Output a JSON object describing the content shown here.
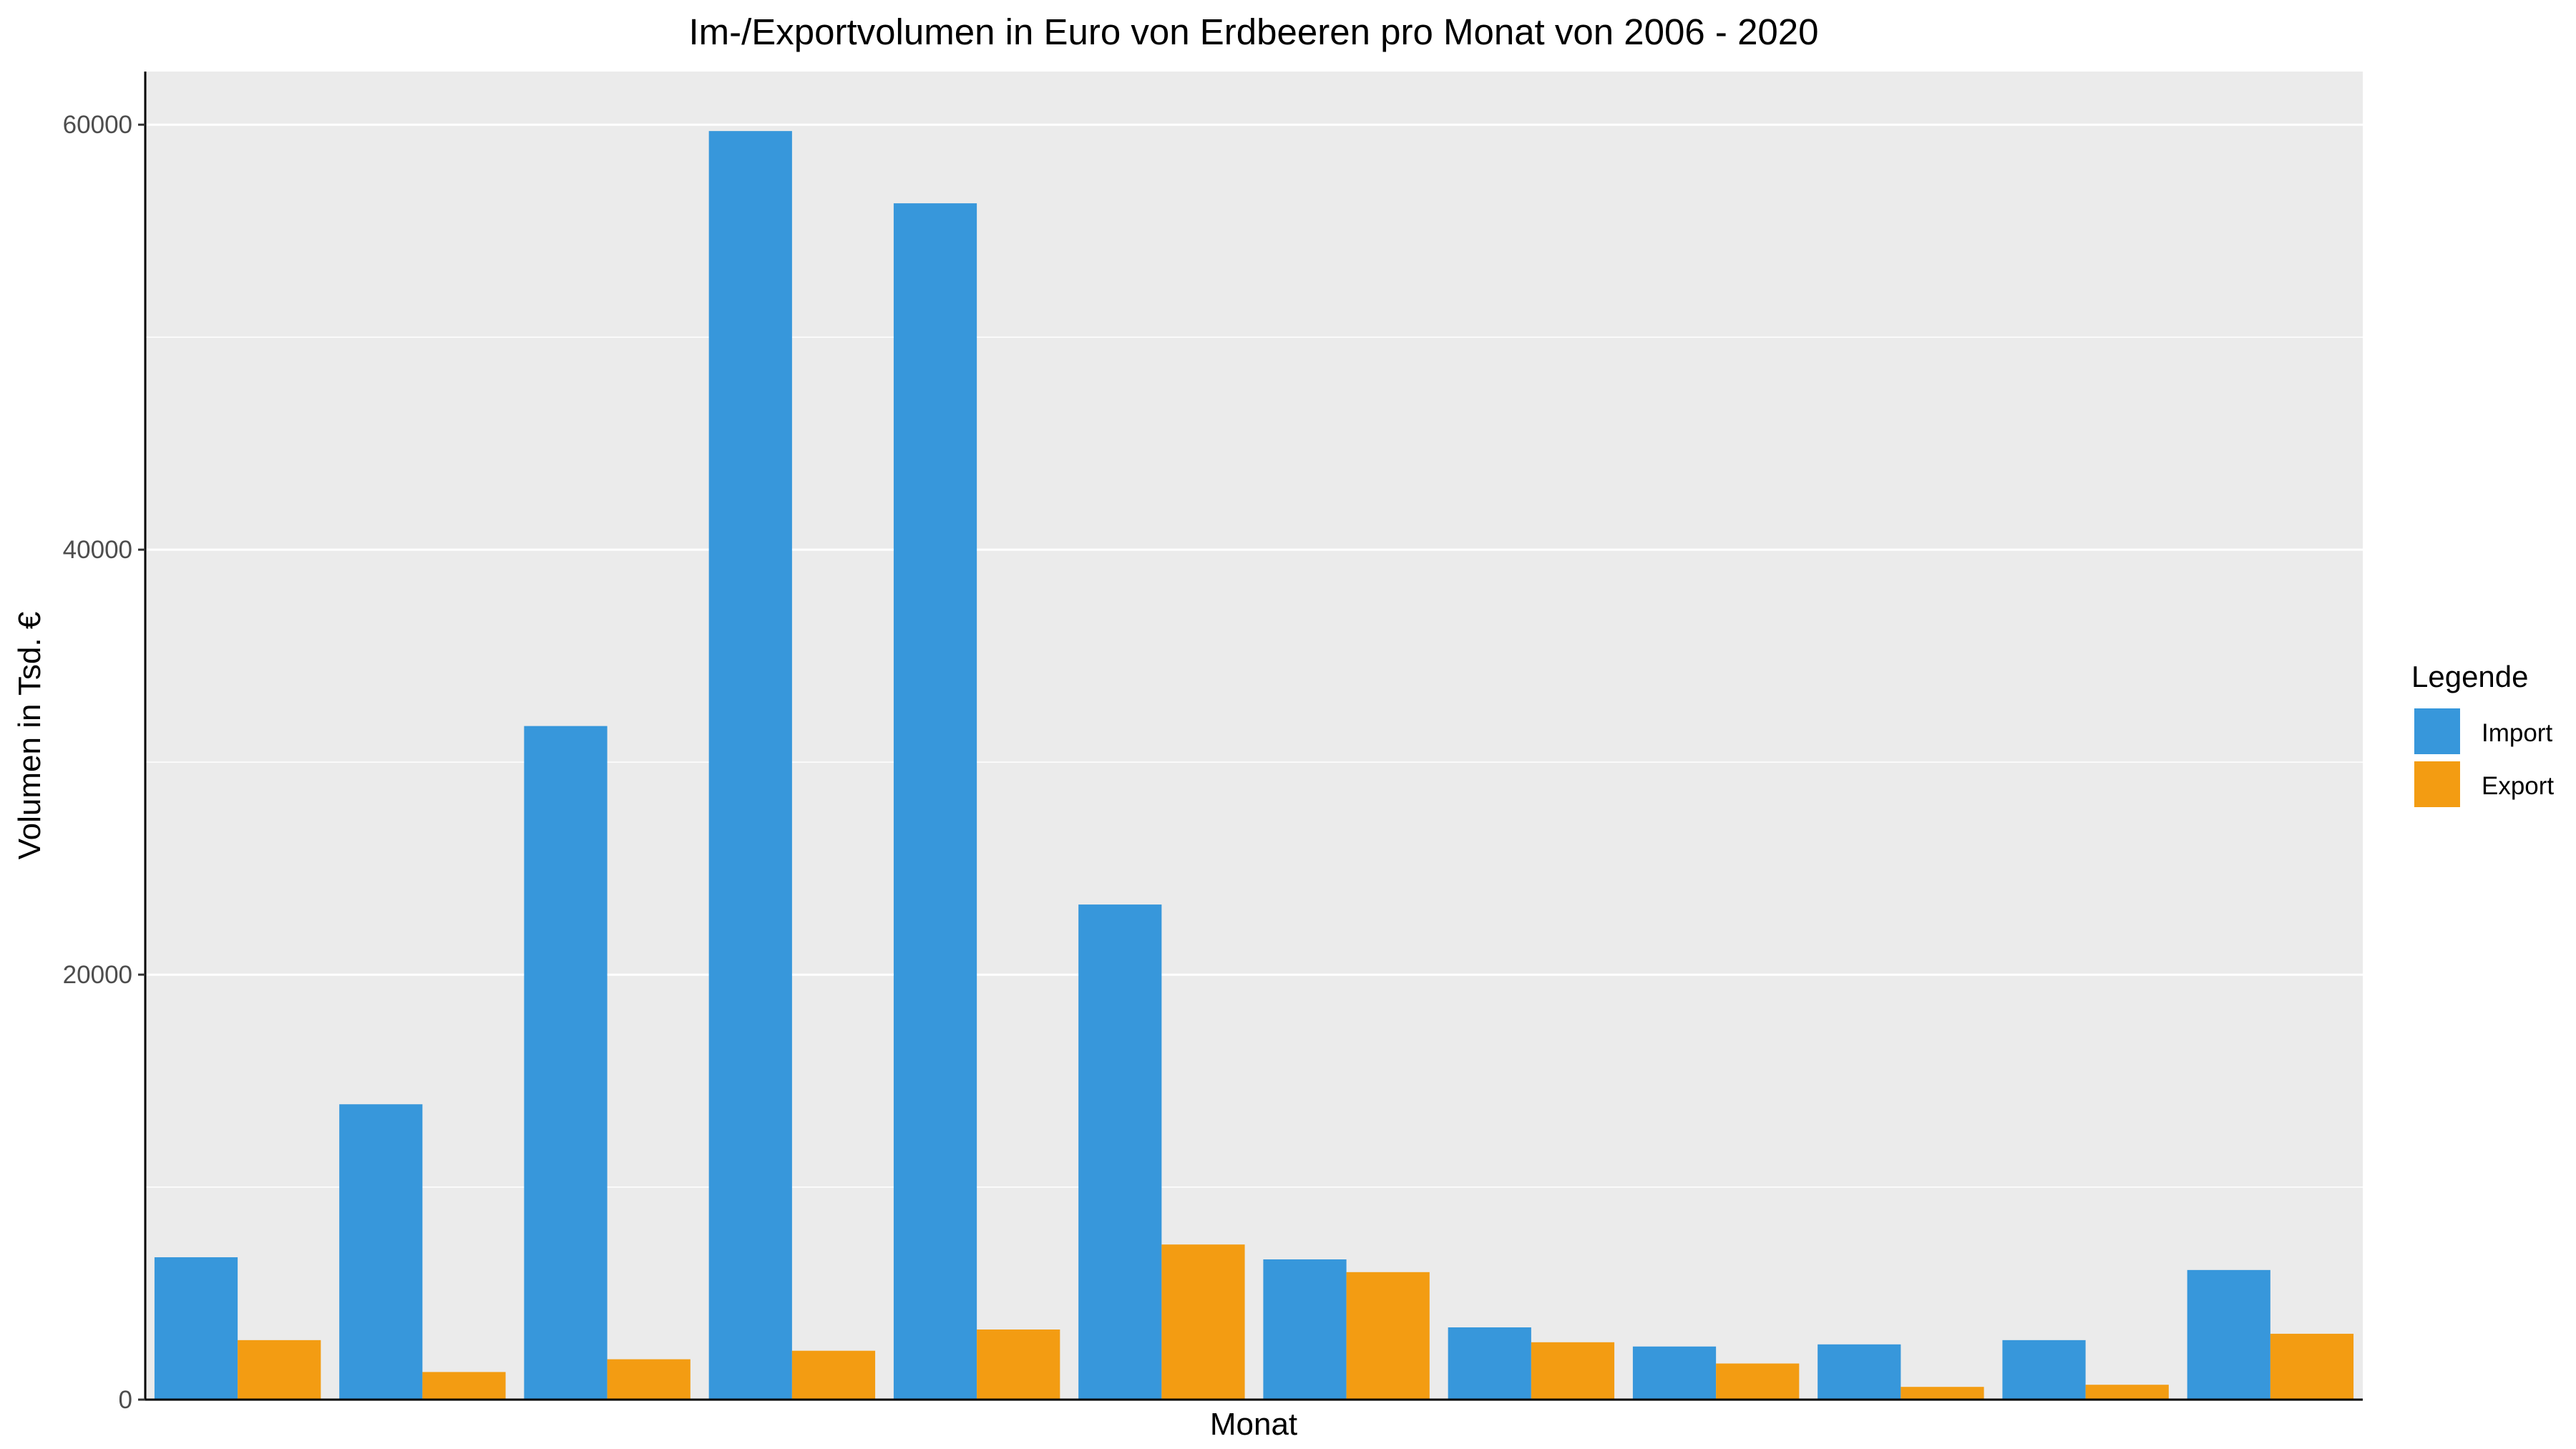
{
  "chart_data": {
    "type": "bar",
    "title": "Im-/Exportvolumen in Euro von Erdbeeren pro Monat von 2006 - 2020",
    "xlabel": "Monat",
    "ylabel": "Volumen in Tsd. €",
    "categories": [
      "",
      "",
      "",
      "",
      "",
      "",
      "",
      "",
      "",
      "",
      "",
      ""
    ],
    "series": [
      {
        "name": "Import",
        "color": "#3797db",
        "values": [
          6700,
          13900,
          31700,
          59700,
          56300,
          23300,
          6600,
          3400,
          2500,
          2600,
          2800,
          6100
        ]
      },
      {
        "name": "Export",
        "color": "#f39c12",
        "values": [
          2800,
          1300,
          1900,
          2300,
          3300,
          7300,
          6000,
          2700,
          1700,
          600,
          700,
          3100
        ]
      }
    ],
    "ylim": [
      0,
      62500
    ],
    "yticks": [
      0,
      20000,
      40000,
      60000
    ],
    "yticks_labels": [
      "0",
      "20000",
      "40000",
      "60000"
    ],
    "grid": true,
    "legend": {
      "title": "Legende",
      "position": "right"
    },
    "panel_color": "#ebebeb"
  }
}
